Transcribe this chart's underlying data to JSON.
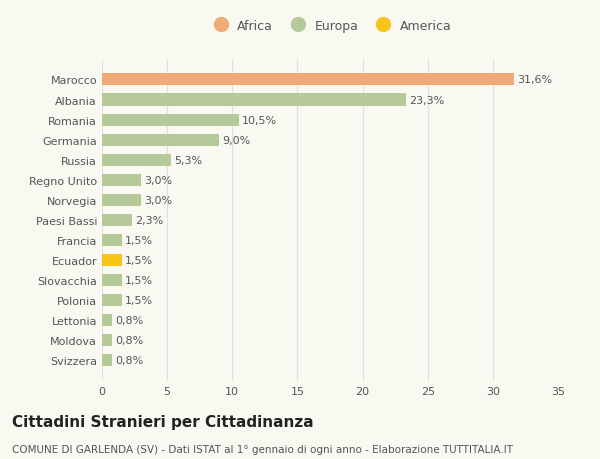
{
  "categories": [
    "Svizzera",
    "Moldova",
    "Lettonia",
    "Polonia",
    "Slovacchia",
    "Ecuador",
    "Francia",
    "Paesi Bassi",
    "Norvegia",
    "Regno Unito",
    "Russia",
    "Germania",
    "Romania",
    "Albania",
    "Marocco"
  ],
  "values": [
    0.8,
    0.8,
    0.8,
    1.5,
    1.5,
    1.5,
    1.5,
    2.3,
    3.0,
    3.0,
    5.3,
    9.0,
    10.5,
    23.3,
    31.6
  ],
  "labels": [
    "0,8%",
    "0,8%",
    "0,8%",
    "1,5%",
    "1,5%",
    "1,5%",
    "1,5%",
    "2,3%",
    "3,0%",
    "3,0%",
    "5,3%",
    "9,0%",
    "10,5%",
    "23,3%",
    "31,6%"
  ],
  "colors": [
    "#b5c99a",
    "#b5c99a",
    "#b5c99a",
    "#b5c99a",
    "#b5c99a",
    "#f5c518",
    "#b5c99a",
    "#b5c99a",
    "#b5c99a",
    "#b5c99a",
    "#b5c99a",
    "#b5c99a",
    "#b5c99a",
    "#b5c99a",
    "#f0aa78"
  ],
  "legend_labels": [
    "Africa",
    "Europa",
    "America"
  ],
  "legend_colors": [
    "#f0aa78",
    "#b5c99a",
    "#f5c518"
  ],
  "title": "Cittadini Stranieri per Cittadinanza",
  "subtitle": "COMUNE DI GARLENDA (SV) - Dati ISTAT al 1° gennaio di ogni anno - Elaborazione TUTTITALIA.IT",
  "xlim": [
    0,
    35
  ],
  "xticks": [
    0,
    5,
    10,
    15,
    20,
    25,
    30,
    35
  ],
  "background_color": "#f9f9f2",
  "grid_color": "#e0e0e0",
  "text_color": "#555555",
  "label_fontsize": 8,
  "ytick_fontsize": 8,
  "xtick_fontsize": 8,
  "title_fontsize": 11,
  "subtitle_fontsize": 7.5
}
